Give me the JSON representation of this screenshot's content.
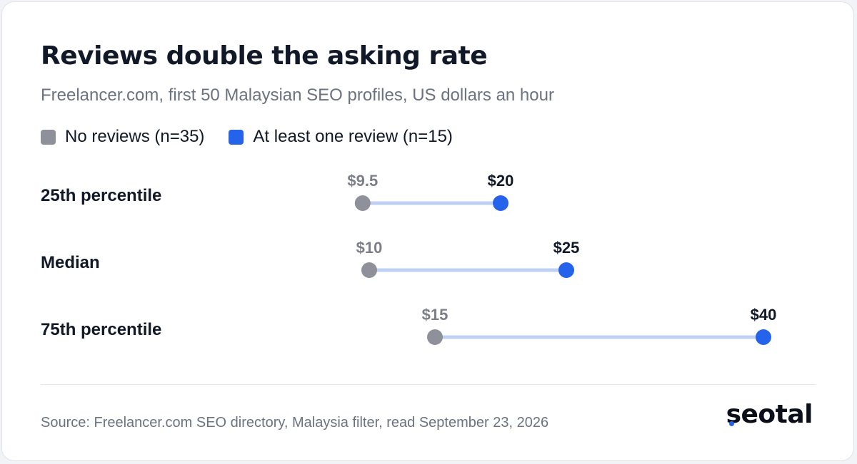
{
  "chart_data": {
    "type": "dumbbell",
    "title": "Reviews double the asking rate",
    "subtitle": "Freelancer.com, first 50 Malaysian SEO profiles, US dollars an hour",
    "series": [
      {
        "name": "No reviews (n=35)",
        "color": "#8e9199"
      },
      {
        "name": "At least one review (n=15)",
        "color": "#2563eb"
      }
    ],
    "categories": [
      "25th percentile",
      "Median",
      "75th percentile"
    ],
    "rows": [
      {
        "label": "25th percentile",
        "no_reviews": 9.5,
        "with_review": 20,
        "no_reviews_label": "$9.5",
        "with_review_label": "$20"
      },
      {
        "label": "Median",
        "no_reviews": 10,
        "with_review": 25,
        "no_reviews_label": "$10",
        "with_review_label": "$25"
      },
      {
        "label": "75th percentile",
        "no_reviews": 15,
        "with_review": 40,
        "no_reviews_label": "$15",
        "with_review_label": "$40"
      }
    ],
    "connector_color": "#bfd0f3",
    "source": "Source: Freelancer.com SEO directory, Malaysia filter, read September 23, 2026"
  },
  "brand": {
    "logo_text": "seotal",
    "accent": "#2563eb"
  }
}
